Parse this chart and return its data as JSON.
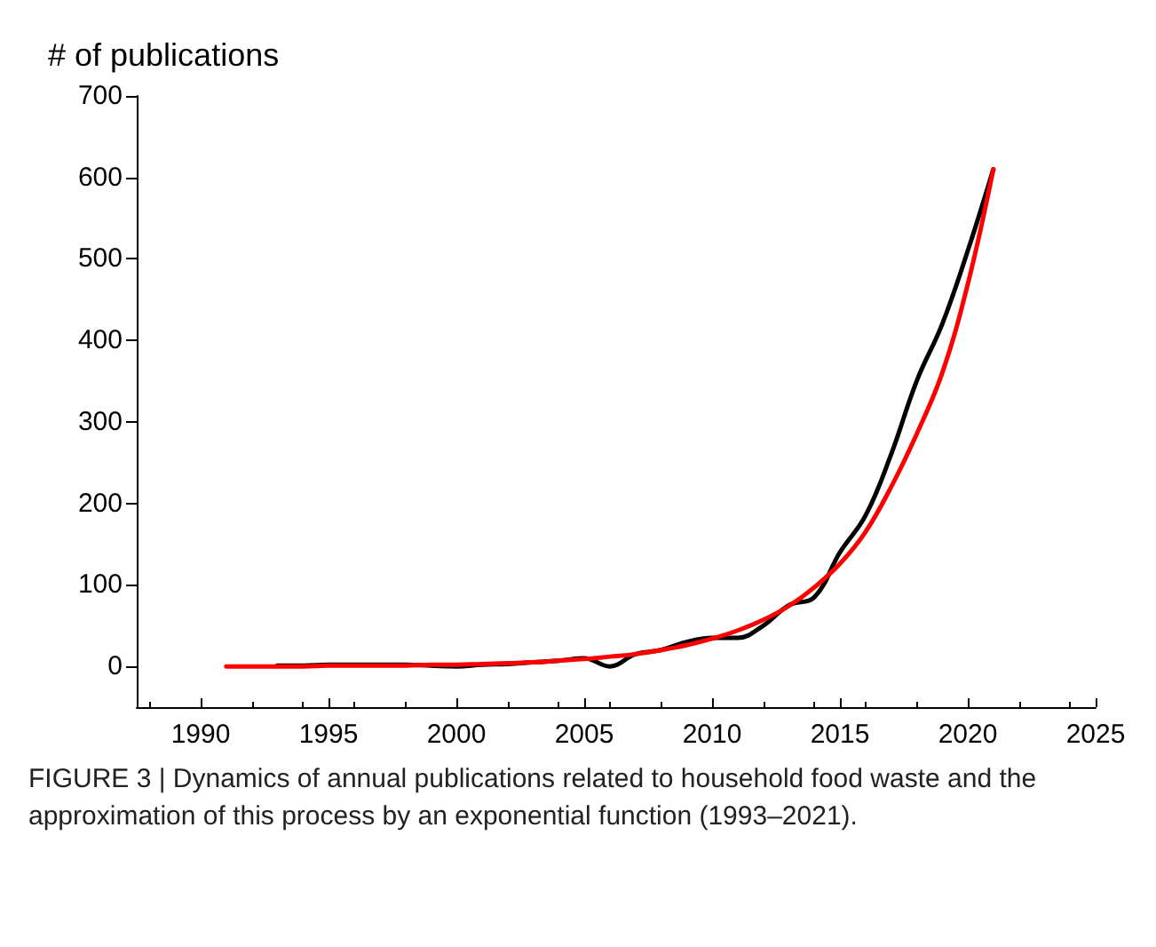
{
  "chart_data": {
    "type": "line",
    "ylabel": "# of publications",
    "x": [
      1991,
      1992,
      1993,
      1994,
      1995,
      1996,
      1997,
      1998,
      1999,
      2000,
      2001,
      2002,
      2003,
      2004,
      2005,
      2006,
      2007,
      2008,
      2009,
      2010,
      2011,
      2012,
      2013,
      2014,
      2015,
      2016,
      2017,
      2018,
      2019,
      2020,
      2021
    ],
    "series": [
      {
        "color": "#000000",
        "values": [
          null,
          null,
          1,
          1,
          2,
          2,
          2,
          2,
          1,
          0,
          2,
          3,
          5,
          7,
          10,
          0,
          15,
          20,
          30,
          35,
          35,
          50,
          75,
          85,
          140,
          185,
          260,
          350,
          420,
          510,
          610
        ]
      },
      {
        "color": "#ff0000",
        "values": [
          0,
          0,
          0,
          0,
          1,
          1,
          1,
          1,
          2,
          2,
          3,
          4,
          5,
          7,
          9,
          12,
          15,
          20,
          26,
          34,
          44,
          57,
          74,
          97,
          126,
          165,
          220,
          285,
          360,
          469,
          610
        ]
      }
    ],
    "xlim": [
      1987.5,
      2025
    ],
    "xticks": [
      1990,
      1995,
      2000,
      2005,
      2010,
      2015,
      2020,
      2025
    ],
    "ylim": [
      -50,
      700
    ],
    "yticks": [
      0,
      100,
      200,
      300,
      400,
      500,
      600,
      700
    ],
    "grid": false,
    "marker": "none",
    "line_style": "solid",
    "annotations": [
      "FIGURE 3 | Dynamics of annual publications related to household food waste and the approximation of this process by an exponential function (1993–2021)."
    ]
  }
}
